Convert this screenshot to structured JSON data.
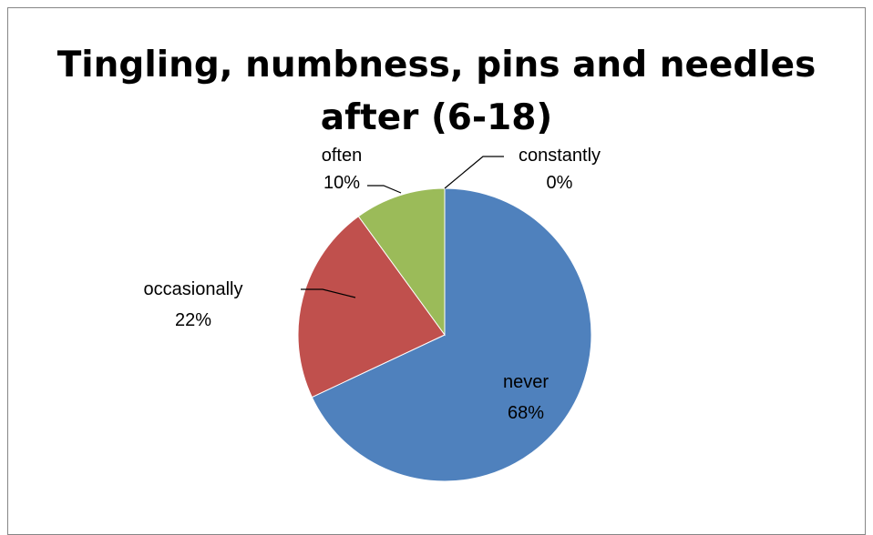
{
  "chart_data": {
    "type": "pie",
    "title_lines": [
      "Tingling, numbness, pins and needles",
      "after (6-18)"
    ],
    "slices": [
      {
        "label": "never",
        "value": 68,
        "value_label": "68%",
        "color": "#4F81BD"
      },
      {
        "label": "occasionally",
        "value": 22,
        "value_label": "22%",
        "color": "#C0504D"
      },
      {
        "label": "often",
        "value": 10,
        "value_label": "10%",
        "color": "#9BBB59"
      },
      {
        "label": "constantly",
        "value": 0,
        "value_label": "0%",
        "color": "#8064A2"
      }
    ],
    "start_angle": "12 o'clock",
    "direction": "clockwise",
    "legend": "none"
  }
}
